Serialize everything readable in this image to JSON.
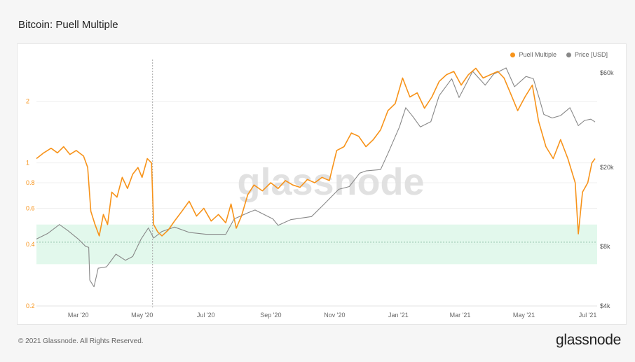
{
  "page": {
    "title": "Bitcoin: Puell Multiple",
    "footer": "© 2021 Glassnode. All Rights Reserved.",
    "brand": "glassnode",
    "watermark": "glassnode"
  },
  "legend": [
    {
      "label": "Puell Multiple",
      "color": "#f7931a"
    },
    {
      "label": "Price [USD]",
      "color": "#888888"
    }
  ],
  "chart_data": {
    "type": "line",
    "title": "Bitcoin: Puell Multiple",
    "x_range": [
      "2020-01-21",
      "2021-07-10"
    ],
    "x_ticks": [
      {
        "label": "Mar '20",
        "date": "2020-03-01"
      },
      {
        "label": "May '20",
        "date": "2020-05-01"
      },
      {
        "label": "Jul '20",
        "date": "2020-07-01"
      },
      {
        "label": "Sep '20",
        "date": "2020-09-01"
      },
      {
        "label": "Nov '20",
        "date": "2020-11-01"
      },
      {
        "label": "Jan '21",
        "date": "2021-01-01"
      },
      {
        "label": "Mar '21",
        "date": "2021-03-01"
      },
      {
        "label": "May '21",
        "date": "2021-05-01"
      },
      {
        "label": "Jul '21",
        "date": "2021-07-01"
      }
    ],
    "y_left": {
      "scale": "log",
      "range": [
        0.2,
        3.2
      ],
      "color": "#f7931a",
      "ticks": [
        {
          "label": "0.2",
          "v": 0.2
        },
        {
          "label": "0.4",
          "v": 0.4
        },
        {
          "label": "0.6",
          "v": 0.6
        },
        {
          "label": "0.8",
          "v": 0.8
        },
        {
          "label": "1",
          "v": 1
        },
        {
          "label": "2",
          "v": 2
        }
      ]
    },
    "y_right": {
      "scale": "log",
      "range": [
        4000,
        70000
      ],
      "color": "#555555",
      "ticks": [
        {
          "label": "$4k",
          "v": 4000
        },
        {
          "label": "$8k",
          "v": 8000
        },
        {
          "label": "$20k",
          "v": 20000
        },
        {
          "label": "$60k",
          "v": 60000
        }
      ]
    },
    "zone": {
      "low": 0.32,
      "high": 0.5,
      "reference": 0.41,
      "color": "#d8f5e6"
    },
    "vertical_marker_date": "2020-05-11",
    "series": [
      {
        "name": "Puell Multiple",
        "color": "#f7931a",
        "axis": "left",
        "points": [
          [
            "2020-01-21",
            1.05
          ],
          [
            "2020-01-28",
            1.12
          ],
          [
            "2020-02-04",
            1.18
          ],
          [
            "2020-02-10",
            1.12
          ],
          [
            "2020-02-16",
            1.2
          ],
          [
            "2020-02-22",
            1.1
          ],
          [
            "2020-02-28",
            1.15
          ],
          [
            "2020-03-06",
            1.08
          ],
          [
            "2020-03-10",
            0.95
          ],
          [
            "2020-03-13",
            0.58
          ],
          [
            "2020-03-17",
            0.5
          ],
          [
            "2020-03-21",
            0.44
          ],
          [
            "2020-03-25",
            0.56
          ],
          [
            "2020-03-29",
            0.5
          ],
          [
            "2020-04-02",
            0.72
          ],
          [
            "2020-04-07",
            0.68
          ],
          [
            "2020-04-12",
            0.85
          ],
          [
            "2020-04-17",
            0.75
          ],
          [
            "2020-04-22",
            0.88
          ],
          [
            "2020-04-27",
            0.95
          ],
          [
            "2020-05-01",
            0.85
          ],
          [
            "2020-05-06",
            1.05
          ],
          [
            "2020-05-10",
            1.0
          ],
          [
            "2020-05-12",
            0.5
          ],
          [
            "2020-05-16",
            0.46
          ],
          [
            "2020-05-20",
            0.44
          ],
          [
            "2020-05-26",
            0.47
          ],
          [
            "2020-06-01",
            0.52
          ],
          [
            "2020-06-08",
            0.58
          ],
          [
            "2020-06-15",
            0.65
          ],
          [
            "2020-06-22",
            0.55
          ],
          [
            "2020-06-29",
            0.6
          ],
          [
            "2020-07-06",
            0.52
          ],
          [
            "2020-07-13",
            0.56
          ],
          [
            "2020-07-20",
            0.51
          ],
          [
            "2020-07-25",
            0.63
          ],
          [
            "2020-07-30",
            0.48
          ],
          [
            "2020-08-04",
            0.55
          ],
          [
            "2020-08-10",
            0.7
          ],
          [
            "2020-08-16",
            0.78
          ],
          [
            "2020-08-24",
            0.73
          ],
          [
            "2020-09-01",
            0.8
          ],
          [
            "2020-09-08",
            0.75
          ],
          [
            "2020-09-15",
            0.82
          ],
          [
            "2020-09-22",
            0.78
          ],
          [
            "2020-09-29",
            0.76
          ],
          [
            "2020-10-06",
            0.83
          ],
          [
            "2020-10-13",
            0.8
          ],
          [
            "2020-10-20",
            0.85
          ],
          [
            "2020-10-27",
            0.82
          ],
          [
            "2020-11-03",
            1.15
          ],
          [
            "2020-11-10",
            1.2
          ],
          [
            "2020-11-17",
            1.4
          ],
          [
            "2020-11-24",
            1.35
          ],
          [
            "2020-12-01",
            1.2
          ],
          [
            "2020-12-08",
            1.3
          ],
          [
            "2020-12-15",
            1.45
          ],
          [
            "2020-12-22",
            1.8
          ],
          [
            "2020-12-29",
            1.95
          ],
          [
            "2021-01-05",
            2.6
          ],
          [
            "2021-01-12",
            2.1
          ],
          [
            "2021-01-19",
            2.2
          ],
          [
            "2021-01-26",
            1.85
          ],
          [
            "2021-02-02",
            2.1
          ],
          [
            "2021-02-09",
            2.5
          ],
          [
            "2021-02-16",
            2.7
          ],
          [
            "2021-02-23",
            2.8
          ],
          [
            "2021-03-02",
            2.4
          ],
          [
            "2021-03-09",
            2.7
          ],
          [
            "2021-03-16",
            2.9
          ],
          [
            "2021-03-23",
            2.6
          ],
          [
            "2021-03-30",
            2.7
          ],
          [
            "2021-04-06",
            2.8
          ],
          [
            "2021-04-12",
            2.6
          ],
          [
            "2021-04-18",
            2.2
          ],
          [
            "2021-04-25",
            1.8
          ],
          [
            "2021-05-02",
            2.1
          ],
          [
            "2021-05-09",
            2.4
          ],
          [
            "2021-05-15",
            1.6
          ],
          [
            "2021-05-22",
            1.2
          ],
          [
            "2021-05-29",
            1.05
          ],
          [
            "2021-06-05",
            1.3
          ],
          [
            "2021-06-12",
            1.05
          ],
          [
            "2021-06-19",
            0.8
          ],
          [
            "2021-06-22",
            0.45
          ],
          [
            "2021-06-26",
            0.72
          ],
          [
            "2021-07-01",
            0.8
          ],
          [
            "2021-07-05",
            1.0
          ],
          [
            "2021-07-08",
            1.05
          ]
        ]
      },
      {
        "name": "Price [USD]",
        "color": "#888888",
        "axis": "right",
        "points": [
          [
            "2020-01-21",
            8700
          ],
          [
            "2020-02-01",
            9300
          ],
          [
            "2020-02-12",
            10300
          ],
          [
            "2020-02-20",
            9600
          ],
          [
            "2020-03-01",
            8700
          ],
          [
            "2020-03-08",
            8000
          ],
          [
            "2020-03-11",
            7900
          ],
          [
            "2020-03-12",
            5400
          ],
          [
            "2020-03-16",
            5000
          ],
          [
            "2020-03-20",
            6200
          ],
          [
            "2020-03-28",
            6300
          ],
          [
            "2020-04-06",
            7300
          ],
          [
            "2020-04-15",
            6800
          ],
          [
            "2020-04-22",
            7100
          ],
          [
            "2020-04-30",
            8700
          ],
          [
            "2020-05-07",
            9900
          ],
          [
            "2020-05-12",
            8800
          ],
          [
            "2020-05-20",
            9500
          ],
          [
            "2020-06-01",
            10000
          ],
          [
            "2020-06-15",
            9400
          ],
          [
            "2020-07-01",
            9200
          ],
          [
            "2020-07-20",
            9200
          ],
          [
            "2020-07-28",
            11000
          ],
          [
            "2020-08-10",
            11800
          ],
          [
            "2020-08-17",
            12200
          ],
          [
            "2020-09-03",
            11000
          ],
          [
            "2020-09-08",
            10200
          ],
          [
            "2020-09-20",
            10900
          ],
          [
            "2020-10-10",
            11300
          ],
          [
            "2020-10-21",
            12900
          ],
          [
            "2020-11-05",
            15500
          ],
          [
            "2020-11-15",
            16000
          ],
          [
            "2020-11-25",
            18700
          ],
          [
            "2020-12-01",
            19200
          ],
          [
            "2020-12-15",
            19500
          ],
          [
            "2020-12-22",
            23500
          ],
          [
            "2021-01-02",
            32000
          ],
          [
            "2021-01-08",
            40000
          ],
          [
            "2021-01-15",
            36000
          ],
          [
            "2021-01-22",
            32000
          ],
          [
            "2021-02-01",
            34000
          ],
          [
            "2021-02-09",
            46000
          ],
          [
            "2021-02-21",
            56000
          ],
          [
            "2021-02-28",
            45000
          ],
          [
            "2021-03-13",
            61000
          ],
          [
            "2021-03-25",
            52000
          ],
          [
            "2021-04-02",
            59000
          ],
          [
            "2021-04-14",
            63500
          ],
          [
            "2021-04-22",
            51000
          ],
          [
            "2021-05-03",
            57500
          ],
          [
            "2021-05-10",
            56000
          ],
          [
            "2021-05-16",
            44000
          ],
          [
            "2021-05-20",
            37000
          ],
          [
            "2021-05-28",
            35500
          ],
          [
            "2021-06-05",
            36500
          ],
          [
            "2021-06-14",
            40000
          ],
          [
            "2021-06-22",
            32500
          ],
          [
            "2021-06-28",
            34500
          ],
          [
            "2021-07-04",
            35000
          ],
          [
            "2021-07-08",
            33900
          ]
        ]
      }
    ]
  }
}
